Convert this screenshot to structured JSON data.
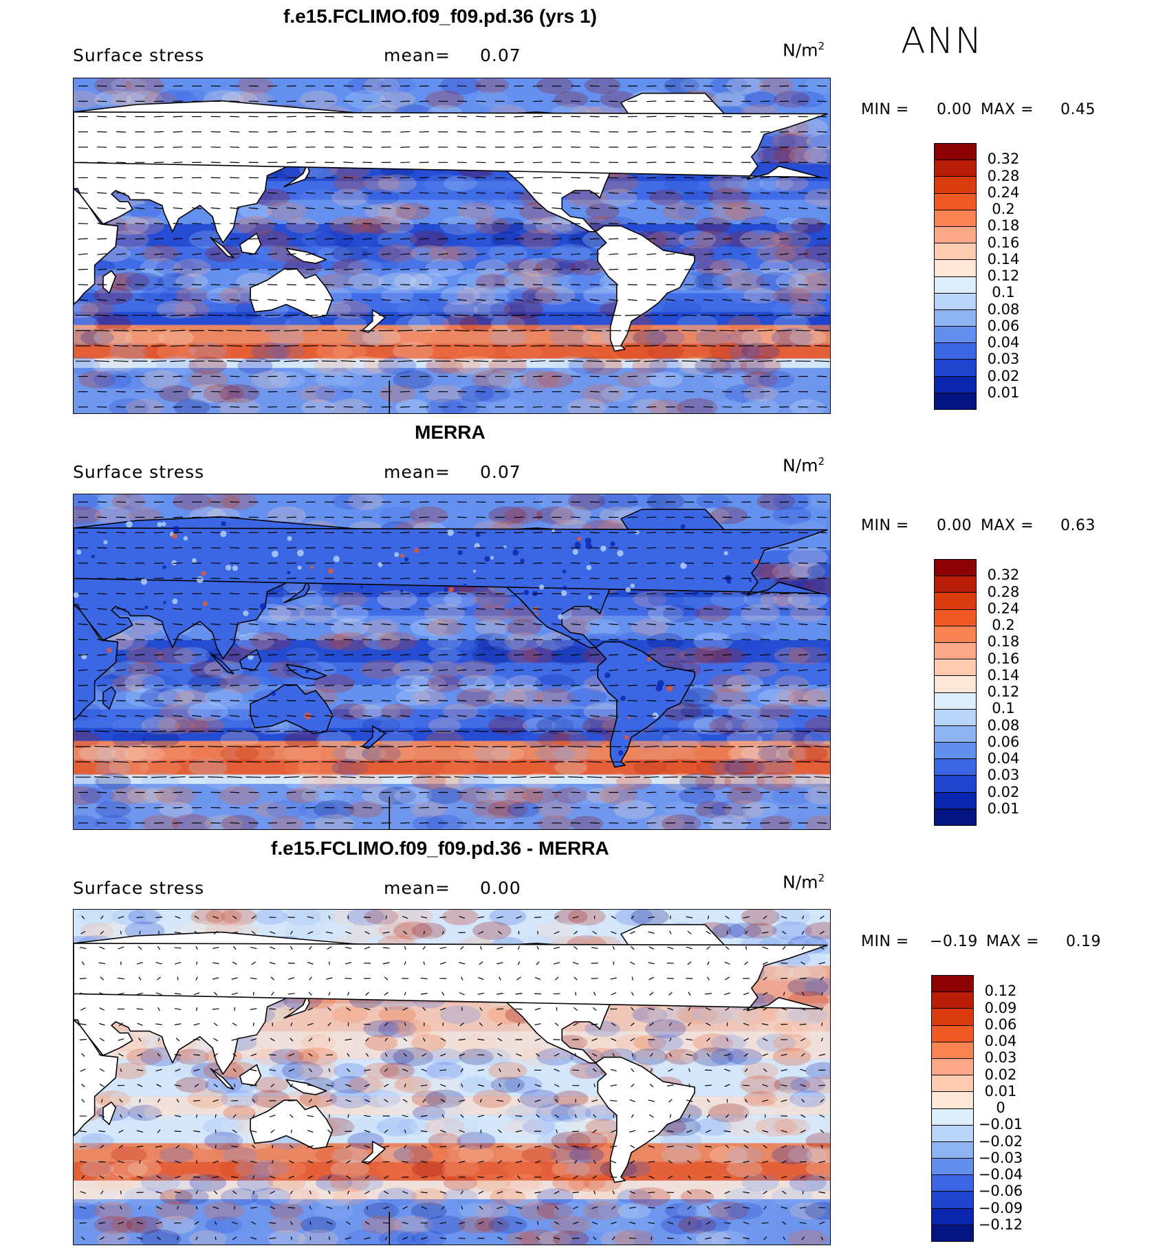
{
  "season": "ANN",
  "panels": [
    {
      "title": "f.e15.FCLIMO.f09_f09.pd.36 (yrs 1)",
      "variable": "Surface stress",
      "mean_label": "mean=",
      "mean_value": "0.07",
      "units": "N/m",
      "units_sup": "2",
      "min_label": "MIN =",
      "min_value": "0.00",
      "max_label": "MAX =",
      "max_value": "0.45",
      "colorbar_labels": [
        "0.32",
        "0.28",
        "0.24",
        "0.2",
        "0.18",
        "0.16",
        "0.14",
        "0.12",
        "0.1",
        "0.08",
        "0.06",
        "0.04",
        "0.03",
        "0.02",
        "0.01"
      ],
      "colorbar_colors": [
        "#8b0000",
        "#b81d06",
        "#d93b0c",
        "#ef5a24",
        "#f88452",
        "#fca886",
        "#fdcbb0",
        "#fde8d8",
        "#dfeefb",
        "#b8d4f8",
        "#8fb4f4",
        "#6390ef",
        "#3b67e4",
        "#1d45cf",
        "#0a25ae",
        "#021580"
      ]
    },
    {
      "title": "MERRA",
      "variable": "Surface stress",
      "mean_label": "mean=",
      "mean_value": "0.07",
      "units": "N/m",
      "units_sup": "2",
      "min_label": "MIN =",
      "min_value": "0.00",
      "max_label": "MAX =",
      "max_value": "0.63",
      "colorbar_labels": [
        "0.32",
        "0.28",
        "0.24",
        "0.2",
        "0.18",
        "0.16",
        "0.14",
        "0.12",
        "0.1",
        "0.08",
        "0.06",
        "0.04",
        "0.03",
        "0.02",
        "0.01"
      ],
      "colorbar_colors": [
        "#8b0000",
        "#b81d06",
        "#d93b0c",
        "#ef5a24",
        "#f88452",
        "#fca886",
        "#fdcbb0",
        "#fde8d8",
        "#dfeefb",
        "#b8d4f8",
        "#8fb4f4",
        "#6390ef",
        "#3b67e4",
        "#1d45cf",
        "#0a25ae",
        "#021580"
      ]
    },
    {
      "title": "f.e15.FCLIMO.f09_f09.pd.36 - MERRA",
      "variable": "Surface stress",
      "mean_label": "mean=",
      "mean_value": "0.00",
      "units": "N/m",
      "units_sup": "2",
      "min_label": "MIN =",
      "min_value": "−0.19",
      "max_label": "MAX =",
      "max_value": "0.19",
      "colorbar_labels": [
        "0.12",
        "0.09",
        "0.06",
        "0.04",
        "0.03",
        "0.02",
        "0.01",
        "0",
        "−0.01",
        "−0.02",
        "−0.03",
        "−0.04",
        "−0.06",
        "−0.09",
        "−0.12"
      ],
      "colorbar_colors": [
        "#8b0000",
        "#b81d06",
        "#d93b0c",
        "#ef5a24",
        "#f88452",
        "#fca886",
        "#fdcbb0",
        "#fde8d8",
        "#dfeefb",
        "#b8d4f8",
        "#8fb4f4",
        "#6390ef",
        "#3b67e4",
        "#1d45cf",
        "#0a25ae",
        "#021580"
      ]
    }
  ],
  "map_style": {
    "ocean_base": "#6f97ee",
    "land": "#ffffff",
    "coast": "#000000"
  }
}
